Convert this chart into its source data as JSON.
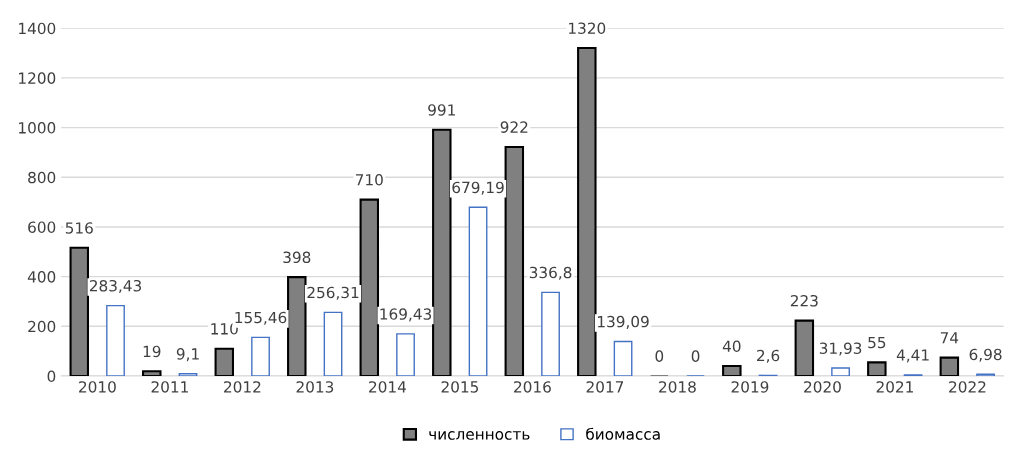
{
  "chart_data": {
    "type": "bar",
    "categories": [
      "2010",
      "2011",
      "2012",
      "2013",
      "2014",
      "2015",
      "2016",
      "2017",
      "2018",
      "2019",
      "2020",
      "2021",
      "2022"
    ],
    "series": [
      {
        "name": "численность",
        "color": "#808080",
        "values": [
          516,
          19,
          110,
          398,
          710,
          991,
          922,
          1320,
          0,
          40,
          223,
          55,
          74
        ],
        "value_labels": [
          "516",
          "19",
          "110",
          "398",
          "710",
          "991",
          "922",
          "1320",
          "0",
          "40",
          "223",
          "55",
          "74"
        ]
      },
      {
        "name": "биомасса",
        "color": "#4472c4",
        "values": [
          283.43,
          9.1,
          155.46,
          256.31,
          169.43,
          679.19,
          336.8,
          139.09,
          0,
          2.6,
          31.93,
          4.41,
          6.98
        ],
        "value_labels": [
          "283,43",
          "9,1",
          "155,46",
          "256,31",
          "169,43",
          "679,19",
          "336,8",
          "139,09",
          "0",
          "2,6",
          "31,93",
          "4,41",
          "6,98"
        ]
      }
    ],
    "ylim": [
      0,
      1400
    ],
    "yticks": [
      0,
      200,
      400,
      600,
      800,
      1000,
      1200,
      1400
    ],
    "grid": "y",
    "legend": "bottom"
  }
}
